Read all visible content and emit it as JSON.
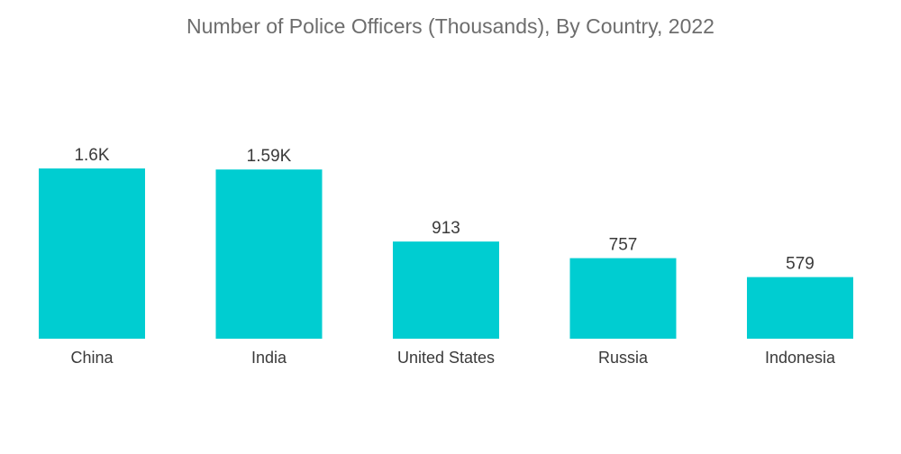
{
  "chart_data": {
    "type": "bar",
    "title": "Number of Police Officers (Thousands), By Country, 2022",
    "categories": [
      "China",
      "India",
      "United States",
      "Russia",
      "Indonesia"
    ],
    "values": [
      1600,
      1590,
      913,
      757,
      579
    ],
    "data_labels": [
      "1.6K",
      "1.59K",
      "913",
      "757",
      "579"
    ],
    "xlabel": "",
    "ylabel": "",
    "ylim": [
      0,
      1600
    ],
    "grid": false,
    "legend": "none",
    "bar_color": "#00cdd1"
  }
}
